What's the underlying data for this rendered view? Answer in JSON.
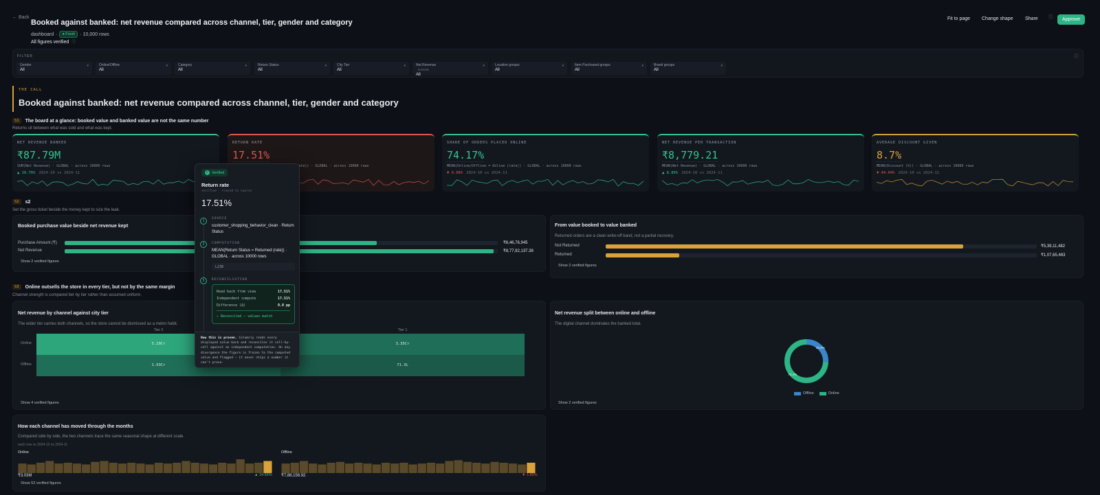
{
  "header": {
    "back": "← Back",
    "title": "Booked against banked: net revenue compared across channel, tier, gender and category",
    "crumb": "dashboard",
    "badge": "● Fresh",
    "rows": "· 10,000 rows",
    "verified": "All figures verified",
    "buttons": {
      "fit": "Fit to page",
      "shape": "Change shape",
      "share": "Share",
      "approve": "Approve"
    }
  },
  "filter": {
    "label": "FILTER",
    "items": [
      {
        "label": "Gender",
        "value": "All"
      },
      {
        "label": "Online/Offline",
        "value": "All"
      },
      {
        "label": "Category",
        "value": "All"
      },
      {
        "label": "Return Status",
        "value": "All"
      },
      {
        "label": "City Tier",
        "value": "All"
      },
      {
        "label": "Net Revenue",
        "extra": "RANGE",
        "value": "All"
      },
      {
        "label": "Location groups",
        "value": "All"
      },
      {
        "label": "Item Purchased groups",
        "value": "All"
      },
      {
        "label": "Brand groups",
        "value": "All"
      }
    ]
  },
  "call": {
    "kicker": "THE CALL",
    "title": "Booked against banked: net revenue compared across channel, tier, gender and category"
  },
  "s1": {
    "num": "S1",
    "title": "The board at a glance: booked value and banked value are not the same number",
    "sub": "Returns sit between what was sold and what was kept."
  },
  "kpis": [
    {
      "label": "NET REVENUE BANKED",
      "value": "₹87.79M",
      "formula": "SUM(Net Revenue) · GLOBAL · across 10000 rows",
      "delta": "▲ 10.76%",
      "period": "2024-10 vs 2024-11",
      "color": "#34c48e",
      "up": true
    },
    {
      "label": "RETURN RATE",
      "value": "17.51%",
      "formula": "MEAN(Return Status = Returned (rate)) · GLOBAL · across 10000 rows",
      "delta": "",
      "period": "",
      "color": "#e0584f",
      "up": false
    },
    {
      "label": "SHARE OF ORDERS PLACED ONLINE",
      "value": "74.17%",
      "formula": "MEAN(Online/Offline = Online (rate)) · GLOBAL · across 10000 rows",
      "delta": "▼ 0.08%",
      "period": "2024-10 vs 2024-11",
      "color": "#34c48e",
      "up": false
    },
    {
      "label": "NET REVENUE PER TRANSACTION",
      "value": "₹8,779.21",
      "formula": "MEAN(Net Revenue) · GLOBAL · across 10000 rows",
      "delta": "▲ 8.89%",
      "period": "2024-10 vs 2024-11",
      "color": "#34c48e",
      "up": true
    },
    {
      "label": "AVERAGE DISCOUNT GIVEN",
      "value": "8.7%",
      "formula": "MEAN(Discount (%)) · GLOBAL · across 10000 rows",
      "delta": "▼ 44.04%",
      "period": "2024-10 vs 2024-11",
      "color": "#d9a23a",
      "up": false
    }
  ],
  "s2": {
    "num": "S2",
    "title": "s2",
    "sub": "Set the gross ticket beside the money kept to size the leak."
  },
  "booked_panel": {
    "title": "Booked purchase value beside net revenue kept",
    "rows": [
      {
        "label": "Purchase Amount (₹)",
        "value": "₹6,46,76,945",
        "frac": 0.72
      },
      {
        "label": "Net Revenue",
        "value": "₹8,77,92,137.38",
        "frac": 0.99
      }
    ],
    "show": "Show 2 verified figures"
  },
  "value_panel": {
    "title": "From value booked to value banked",
    "sub": "Returned orders are a clean write-off band, not a partial recovery.",
    "rows": [
      {
        "label": "Not Returned",
        "value": "₹5,39,11,482",
        "frac": 0.83
      },
      {
        "label": "Returned",
        "value": "₹1,07,65,463",
        "frac": 0.17
      }
    ],
    "show": "Show 2 verified figures"
  },
  "s3": {
    "num": "S3",
    "title": "Online outsells the store in every tier, but not by the same margin",
    "sub": "Channel strength is compared tier by tier rather than assumed uniform."
  },
  "heat_panel": {
    "title": "Net revenue by channel against city tier",
    "sub": "The wider tier carries both channels, so the store cannot be dismissed as a metro habit.",
    "cols": [
      "Tier 2",
      "Tier 1"
    ],
    "rows": [
      {
        "label": "Online",
        "cells": [
          "5.29Cr",
          "3.35Cr"
        ]
      },
      {
        "label": "Offline",
        "cells": [
          "1.93Cr",
          "71.3L"
        ]
      }
    ],
    "show": "Show 4 verified figures"
  },
  "donut_panel": {
    "title": "Net revenue split between online and offline",
    "sub": "The digital channel dominates the banked total.",
    "slices": [
      {
        "name": "Offline",
        "share": 0.256,
        "label": "25.6%",
        "color": "#3a86c8"
      },
      {
        "name": "Online",
        "share": 0.744,
        "label": "74.4%",
        "color": "#2db586"
      }
    ],
    "show": "Show 2 verified figures"
  },
  "months_panel": {
    "title": "How each channel has moved through the months",
    "sub": "Compared side by side, the two channels trace the same seasonal shape at different scale.",
    "note": "each row vs 2024-12 vs 2024-11",
    "online": {
      "label": "Online",
      "value": "₹3.03M",
      "delta": "▲ 14.56%"
    },
    "offline": {
      "label": "Offline",
      "value": "₹7,88,158.92",
      "delta": "▼ 1.85%"
    },
    "online_bars": [
      0.55,
      0.5,
      0.6,
      0.7,
      0.55,
      0.6,
      0.55,
      0.5,
      0.65,
      0.7,
      0.6,
      0.55,
      0.6,
      0.55,
      0.5,
      0.6,
      0.55,
      0.6,
      0.7,
      0.6,
      0.55,
      0.5,
      0.6,
      0.55,
      0.8,
      0.55,
      0.6,
      0.7
    ],
    "offline_bars": [
      0.55,
      0.6,
      0.7,
      0.55,
      0.5,
      0.6,
      0.65,
      0.55,
      0.6,
      0.55,
      0.5,
      0.6,
      0.55,
      0.6,
      0.5,
      0.55,
      0.6,
      0.55,
      0.7,
      0.75,
      0.65,
      0.6,
      0.55,
      0.65,
      0.6,
      0.55,
      0.5,
      0.6
    ],
    "show": "Show 52 verified figures"
  },
  "popover": {
    "badge": "Verified",
    "title": "Return rate",
    "sub": "verified · traced to source",
    "value": "17.51%",
    "source_k": "SOURCE",
    "source_v": "customer_shopping_behavior_clean · Return Status",
    "comp_k": "COMPUTATION",
    "comp_v": "MEAN(Return Status = Returned (rate)) · GLOBAL · across 10000 rows",
    "code": "L238",
    "recon_k": "RECONCILIATION",
    "readback_k": "Read back from view",
    "readback_v": "17.51%",
    "indep_k": "Independent compute",
    "indep_v": "17.51%",
    "diff_k": "Difference (Δ)",
    "diff_v": "0.0 pp",
    "match": "✓ Reconciled — values match",
    "how_bold": "How this is proven.",
    "how_text": "Columnly reads every displayed value back and reconciles it cell-by-cell against an independent computation. On any divergence the figure is frozen to the computed value and flagged — it never ships a number it can't prove."
  }
}
